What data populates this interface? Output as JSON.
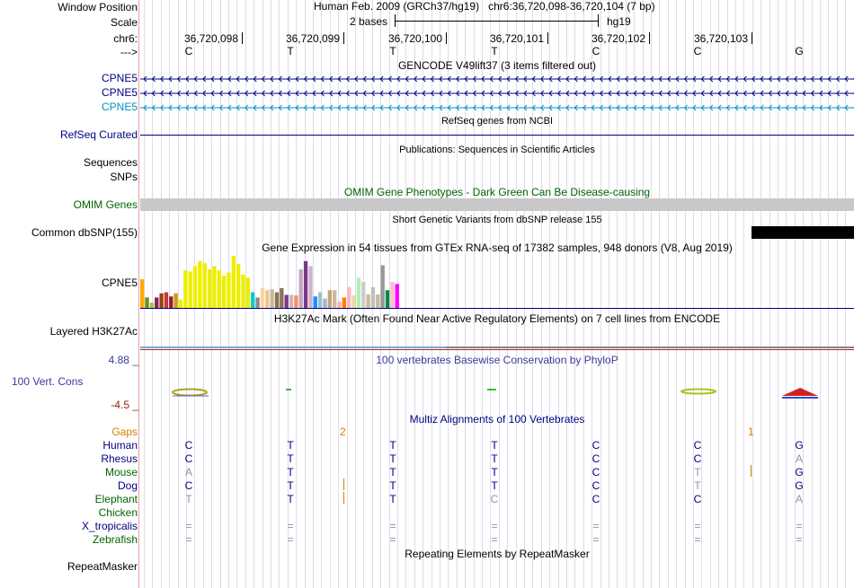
{
  "colors": {
    "navy": "#000080",
    "gencode_last": "#0090c0",
    "omim_green": "#006400",
    "phylop_blue": "#3a3a9a",
    "gaps_orange": "#d08000",
    "dark_red": "#8b2a00",
    "omim_bar": "#c8c8c8",
    "gray_base": "#9090a8",
    "h3k_line": "#7aa6d8"
  },
  "header": {
    "window_position_label": "Window Position",
    "assembly": "Human Feb. 2009 (GRCh37/hg19)",
    "position": "chr6:36,720,098-36,720,104 (7 bp)",
    "scale_label": "Scale",
    "scale_text": "2 bases",
    "scale_db": "hg19",
    "chrom_label": "chr6:",
    "strand_label": "--->",
    "coords": [
      "36,720,098",
      "36,720,099",
      "36,720,100",
      "36,720,101",
      "36,720,102",
      "36,720,103"
    ],
    "bases": [
      "C",
      "T",
      "T",
      "T",
      "C",
      "C",
      "G"
    ]
  },
  "gencode": {
    "title": "GENCODE V49lift37 (3 items filtered out)",
    "genes": [
      "CPNE5",
      "CPNE5",
      "CPNE5"
    ]
  },
  "refseq": {
    "title": "RefSeq genes from NCBI",
    "label": "RefSeq Curated"
  },
  "publications": {
    "title": "Publications: Sequences in Scientific Articles",
    "labels": [
      "Sequences",
      "SNPs"
    ]
  },
  "omim": {
    "title": "OMIM Gene Phenotypes - Dark Green Can Be Disease-causing",
    "label": "OMIM Genes"
  },
  "dbsnp": {
    "title": "Short Genetic Variants from dbSNP release 155",
    "label": "Common dbSNP(155)"
  },
  "gtex": {
    "title": "Gene Expression in 54 tissues from GTEx RNA-seq of 17382 samples, 948 donors (V8, Aug 2019)",
    "label": "CPNE5",
    "values": [
      0.55,
      0.2,
      0.1,
      0.2,
      0.28,
      0.3,
      0.22,
      0.28,
      0.16,
      0.72,
      0.7,
      0.8,
      0.9,
      0.86,
      0.74,
      0.8,
      0.72,
      0.62,
      0.68,
      1.0,
      0.84,
      0.64,
      0.58,
      0.3,
      0.2,
      0.38,
      0.34,
      0.36,
      0.3,
      0.38,
      0.25,
      0.25,
      0.24,
      0.74,
      0.9,
      0.8,
      0.22,
      0.3,
      0.18,
      0.34,
      0.34,
      0.12,
      0.2,
      0.4,
      0.24,
      0.58,
      0.5,
      0.26,
      0.4,
      0.26,
      0.82,
      0.34,
      0.5,
      0.46
    ],
    "colors": [
      "#ffaa00",
      "#6b8e23",
      "#9acd32",
      "#8b1c62",
      "#8b4513",
      "#cd3333",
      "#9b1c31",
      "#cd9b1d",
      "#eeee00",
      "#eeee00",
      "#eeee00",
      "#eeee00",
      "#eeee00",
      "#eeee00",
      "#eeee00",
      "#eeee00",
      "#eeee00",
      "#eeee00",
      "#eeee00",
      "#eeee00",
      "#eeee00",
      "#eeee00",
      "#eeee00",
      "#00cdcd",
      "#8b8b8b",
      "#ffd39b",
      "#eec591",
      "#cdb79e",
      "#8b7355",
      "#8b7355",
      "#7a378b",
      "#ccb6b6",
      "#ff8c69",
      "#c4a4c4",
      "#7a378b",
      "#cdb5cd",
      "#1e90ff",
      "#9ac0cd",
      "#a0b4d0",
      "#c8a078",
      "#cdb79e",
      "#eeb4b4",
      "#ff7f00",
      "#ffb6c1",
      "#e9d8a6",
      "#b4eeb4",
      "#cdcdcd",
      "#cdba96",
      "#bfbfbf",
      "#cdb79e",
      "#999999",
      "#008b45",
      "#ffc0cb",
      "#ff00ff"
    ]
  },
  "h3k27ac": {
    "title": "H3K27Ac Mark (Often Found Near Active Regulatory Elements) on 7 cell lines from ENCODE",
    "label": "Layered H3K27Ac"
  },
  "phylop": {
    "title": "100 vertebrates Basewise Conservation by PhyloP",
    "label": "100 Vert. Cons",
    "max": "4.88 _",
    "min": "-4.5 _"
  },
  "multiz": {
    "title": "Multiz Alignments of 100 Vertebrates",
    "gaps_label": "Gaps",
    "gap_marks": [
      "2",
      "1"
    ],
    "species": [
      {
        "name": "Human",
        "color": "#000080",
        "bases": [
          "C",
          "T",
          "T",
          "T",
          "C",
          "C",
          "G"
        ],
        "faint": [
          0,
          0,
          0,
          0,
          0,
          0,
          0
        ]
      },
      {
        "name": "Rhesus",
        "color": "#000080",
        "bases": [
          "C",
          "T",
          "T",
          "T",
          "C",
          "C",
          "A"
        ],
        "faint": [
          0,
          0,
          0,
          0,
          0,
          0,
          1
        ]
      },
      {
        "name": "Mouse",
        "color": "#006400",
        "bases": [
          "A",
          "T",
          "T",
          "T",
          "C",
          "T",
          "G"
        ],
        "faint": [
          1,
          0,
          0,
          0,
          0,
          1,
          0
        ]
      },
      {
        "name": "Dog",
        "color": "#000080",
        "bases": [
          "C",
          "T",
          "T",
          "T",
          "C",
          "T",
          "G"
        ],
        "faint": [
          0,
          0,
          0,
          0,
          0,
          1,
          0
        ]
      },
      {
        "name": "Elephant",
        "color": "#006400",
        "bases": [
          "T",
          "T",
          "T",
          "C",
          "C",
          "C",
          "A"
        ],
        "faint": [
          1,
          0,
          0,
          1,
          0,
          0,
          1
        ]
      },
      {
        "name": "Chicken",
        "color": "#006400",
        "bases": [
          "",
          "",
          "",
          "",
          "",
          "",
          ""
        ],
        "faint": [
          0,
          0,
          0,
          0,
          0,
          0,
          0
        ]
      },
      {
        "name": "X_tropicalis",
        "color": "#000080",
        "bases": [
          "=",
          "=",
          "=",
          "=",
          "=",
          "=",
          "="
        ],
        "faint": [
          1,
          1,
          1,
          1,
          1,
          1,
          1
        ]
      },
      {
        "name": "Zebrafish",
        "color": "#006400",
        "bases": [
          "=",
          "=",
          "=",
          "=",
          "=",
          "=",
          "="
        ],
        "faint": [
          1,
          1,
          1,
          1,
          1,
          1,
          1
        ]
      }
    ]
  },
  "repeatmasker": {
    "title": "Repeating Elements by RepeatMasker",
    "label": "RepeatMasker"
  }
}
